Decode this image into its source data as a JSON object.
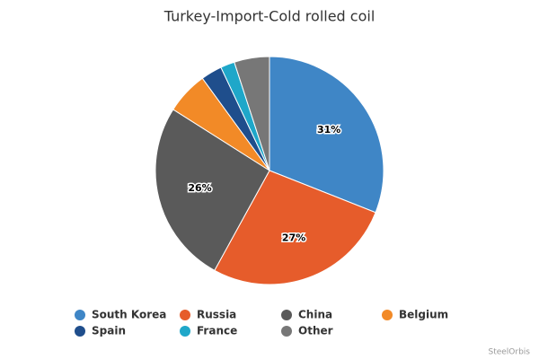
{
  "chart_data": {
    "type": "pie",
    "title": "Turkey-Import-Cold rolled coil",
    "categories": [
      "South Korea",
      "Russia",
      "China",
      "Belgium",
      "Spain",
      "France",
      "Other"
    ],
    "values": [
      31,
      27,
      26,
      6,
      3,
      2,
      5
    ],
    "value_labels": [
      "31%",
      "27%",
      "26%",
      null,
      null,
      null,
      null
    ],
    "colors": [
      "#3f86c6",
      "#e65c2b",
      "#5a5a5a",
      "#f28a27",
      "#1f4e8c",
      "#1fa7c9",
      "#777777"
    ],
    "credit": "SteelOrbis"
  }
}
